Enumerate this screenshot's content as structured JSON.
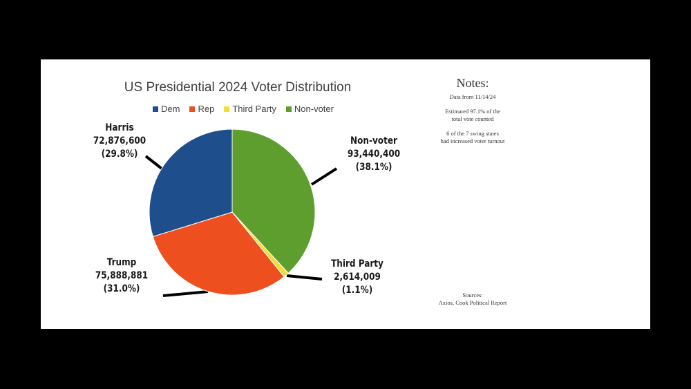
{
  "chart_data": {
    "type": "pie",
    "title": "US Presidential 2024 Voter Distribution",
    "legend": {
      "placement": "top",
      "items": [
        {
          "label": "Dem",
          "color": "#1f4e8c"
        },
        {
          "label": "Rep",
          "color": "#ee4f1e"
        },
        {
          "label": "Third Party",
          "color": "#f5dc3a"
        },
        {
          "label": "Non-voter",
          "color": "#5e9e2f"
        }
      ]
    },
    "slices": [
      {
        "key": "nonvoter",
        "category": "Non-voter",
        "name": "Non-voter",
        "value": 93440400,
        "value_label": "93,440,400",
        "percent_label": "(38.1%)",
        "color": "#5e9e2f"
      },
      {
        "key": "third",
        "category": "Third Party",
        "name": "Third Party",
        "value": 2614009,
        "value_label": "2,614,009",
        "percent_label": "(1.1%)",
        "color": "#f5dc3a"
      },
      {
        "key": "rep",
        "category": "Rep",
        "name": "Trump",
        "value": 75888881,
        "value_label": "75,888,881",
        "percent_label": "(31.0%)",
        "color": "#ee4f1e"
      },
      {
        "key": "dem",
        "category": "Dem",
        "name": "Harris",
        "value": 72876600,
        "value_label": "72,876,600",
        "percent_label": "(29.8%)",
        "color": "#1f4e8c"
      }
    ]
  },
  "notes": {
    "heading": "Notes:",
    "date_line": "Data from 11/14/24",
    "counted_line1": "Estimated 97.1% of the",
    "counted_line2": "total vote counted",
    "swing_line1": "6 of the 7 swing states",
    "swing_line2": "had increased voter turnout"
  },
  "sources": {
    "heading": "Sources:",
    "list": "Axios, Cook Political Report"
  }
}
